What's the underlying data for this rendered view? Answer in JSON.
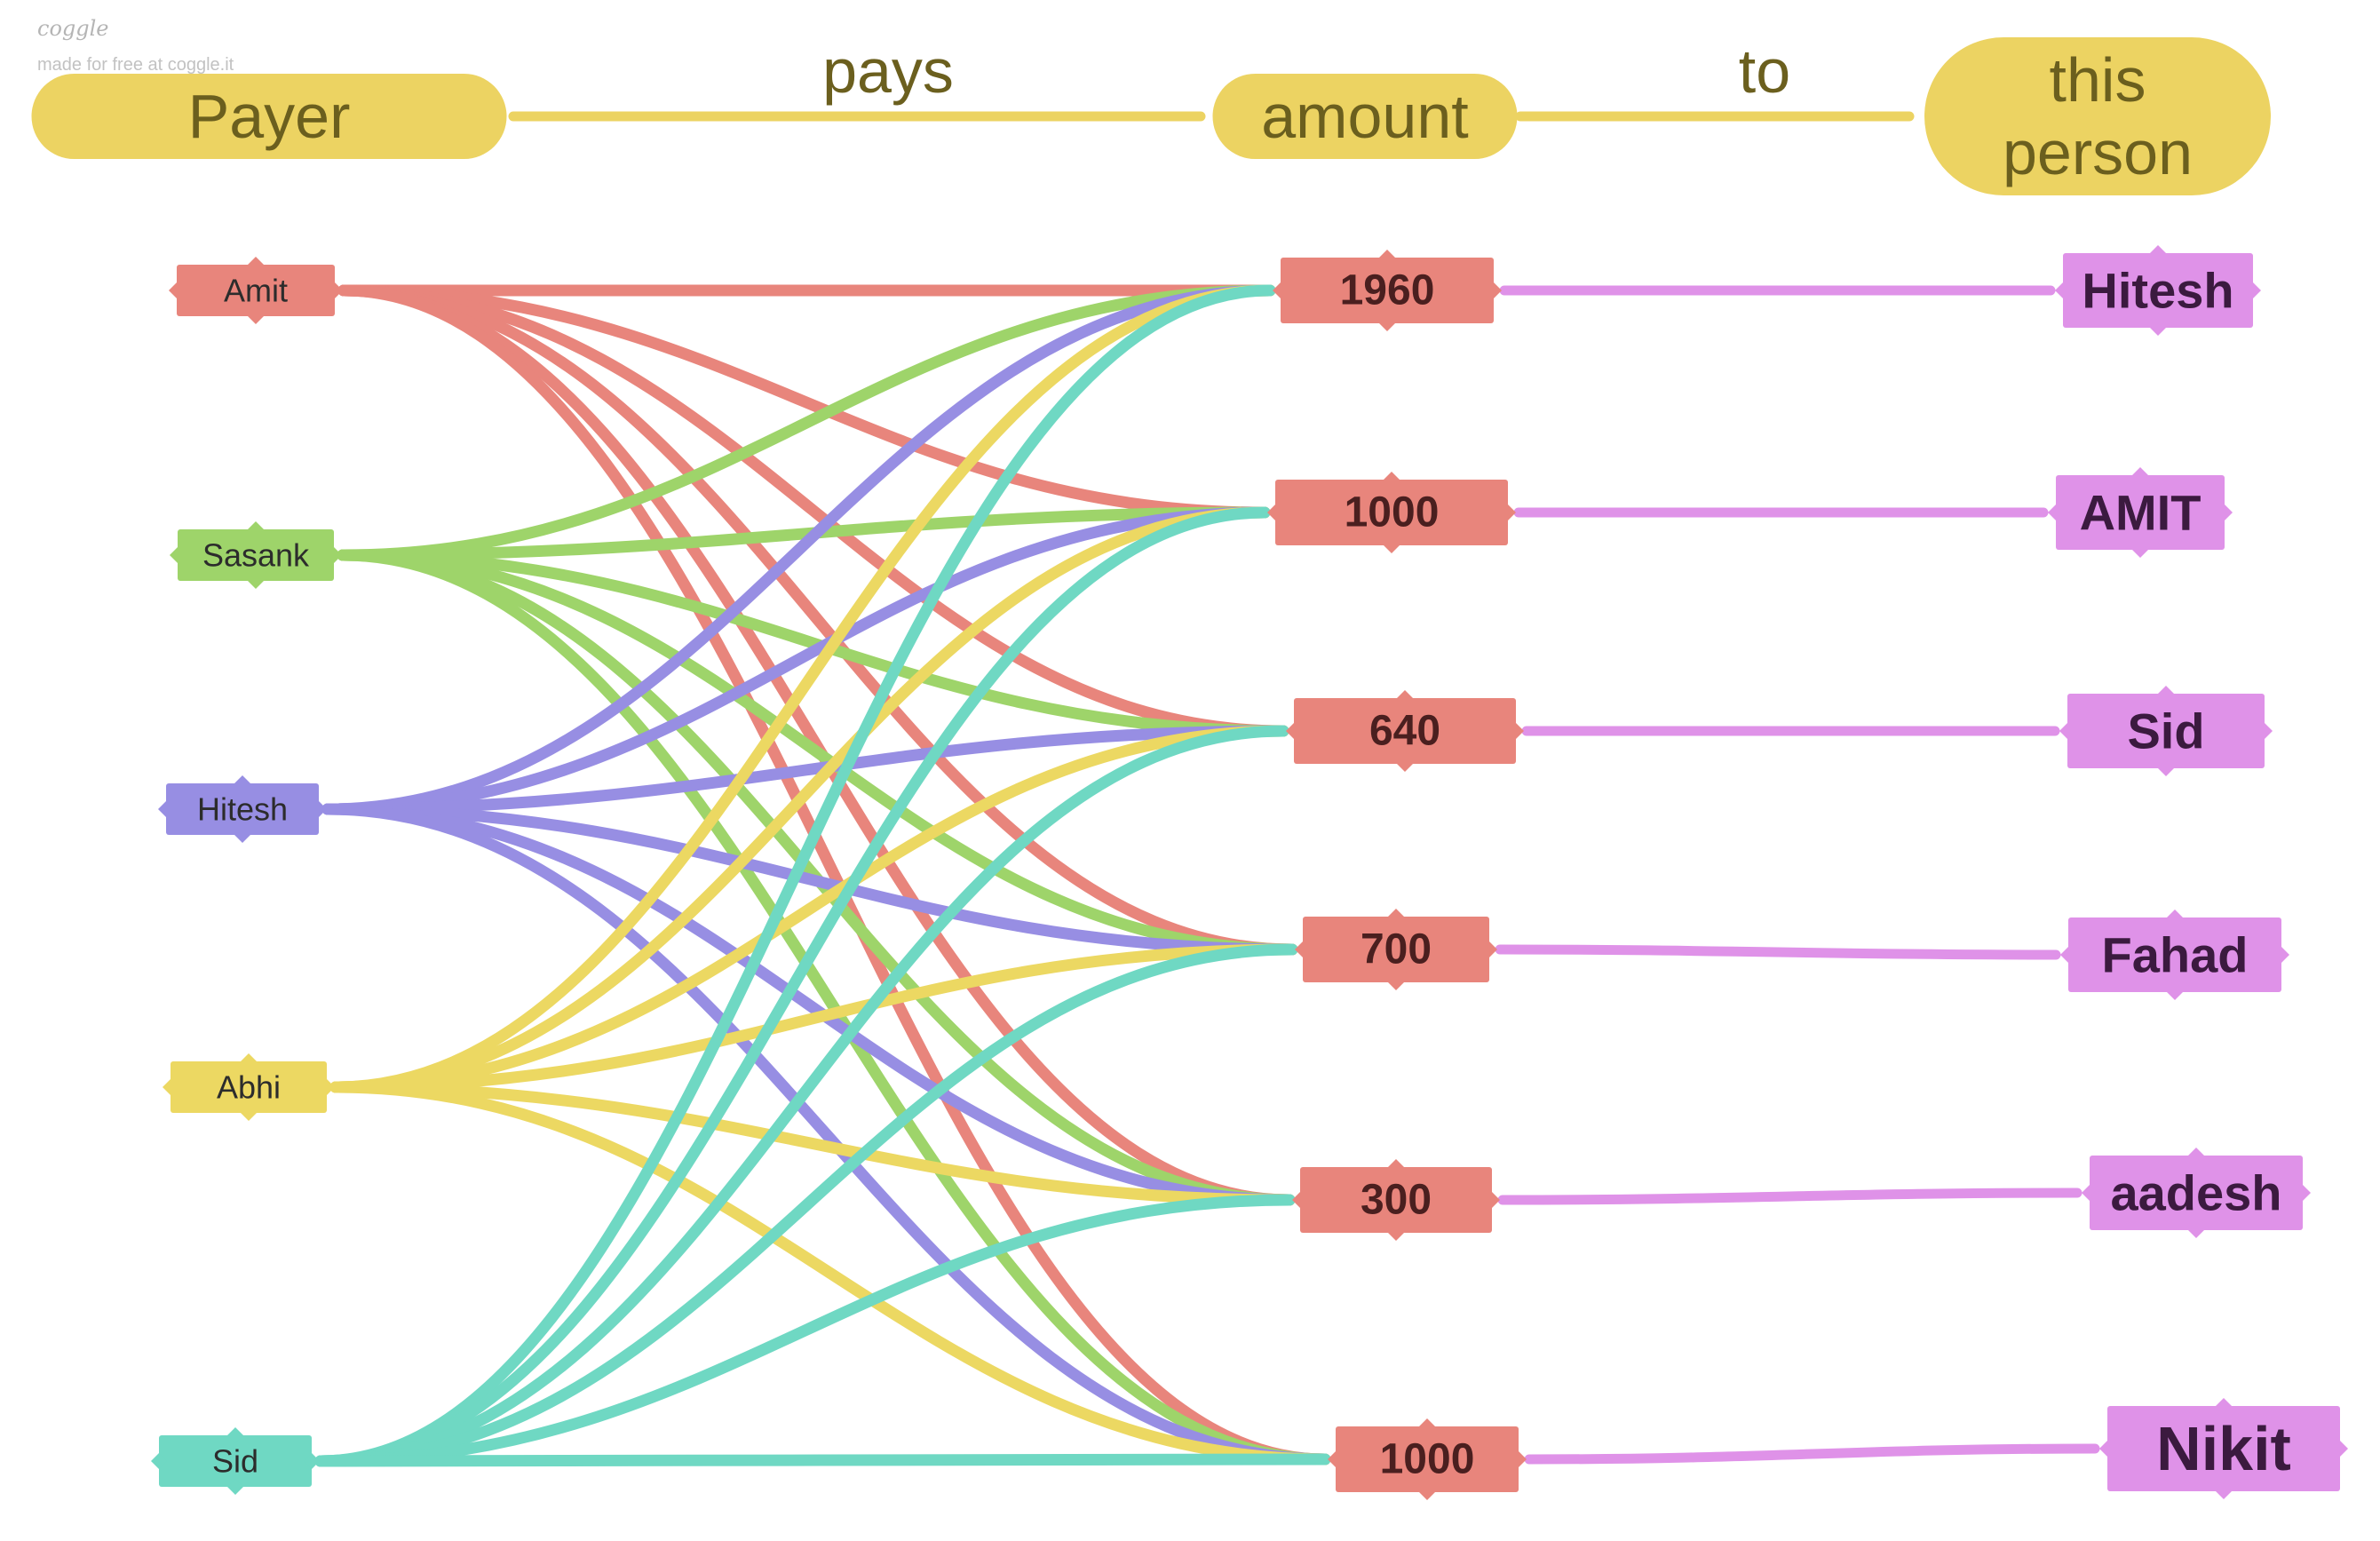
{
  "watermark": {
    "brand": "coggle",
    "note": "made for free at coggle.it"
  },
  "header": {
    "nodes": [
      {
        "id": "payer",
        "label": [
          "Payer"
        ]
      },
      {
        "id": "amount",
        "label": [
          "amount"
        ]
      },
      {
        "id": "person",
        "label": [
          "this",
          "person"
        ]
      }
    ],
    "edges": [
      {
        "from": "payer",
        "to": "amount",
        "label": "pays"
      },
      {
        "from": "amount",
        "to": "person",
        "label": "to"
      }
    ]
  },
  "payers": [
    {
      "id": "amit",
      "label": "Amit",
      "color": "#e8857c"
    },
    {
      "id": "sasank",
      "label": "Sasank",
      "color": "#9ed46a"
    },
    {
      "id": "hitesh",
      "label": "Hitesh",
      "color": "#978ee3"
    },
    {
      "id": "abhi",
      "label": "Abhi",
      "color": "#ecd862"
    },
    {
      "id": "sid",
      "label": "Sid",
      "color": "#6fd8c3"
    }
  ],
  "amounts": [
    {
      "id": "a1960",
      "label": "1960"
    },
    {
      "id": "a1000a",
      "label": "1000"
    },
    {
      "id": "a640",
      "label": "640"
    },
    {
      "id": "a700",
      "label": "700"
    },
    {
      "id": "a300",
      "label": "300"
    },
    {
      "id": "a1000b",
      "label": "1000"
    }
  ],
  "payees": [
    {
      "id": "p-hitesh",
      "label": "Hitesh"
    },
    {
      "id": "p-amit",
      "label": "AMIT"
    },
    {
      "id": "p-sid",
      "label": "Sid"
    },
    {
      "id": "p-fahad",
      "label": "Fahad"
    },
    {
      "id": "p-aadesh",
      "label": "aadesh"
    },
    {
      "id": "p-nikit",
      "label": "Nikit"
    }
  ],
  "payee_links": [
    [
      "a1960",
      "p-hitesh"
    ],
    [
      "a1000a",
      "p-amit"
    ],
    [
      "a640",
      "p-sid"
    ],
    [
      "a700",
      "p-fahad"
    ],
    [
      "a300",
      "p-aadesh"
    ],
    [
      "a1000b",
      "p-nikit"
    ]
  ],
  "payer_links": [
    [
      "amit",
      "a1960"
    ],
    [
      "amit",
      "a1000a"
    ],
    [
      "amit",
      "a640"
    ],
    [
      "amit",
      "a700"
    ],
    [
      "amit",
      "a300"
    ],
    [
      "amit",
      "a1000b"
    ],
    [
      "sasank",
      "a1960"
    ],
    [
      "sasank",
      "a1000a"
    ],
    [
      "sasank",
      "a640"
    ],
    [
      "sasank",
      "a700"
    ],
    [
      "sasank",
      "a300"
    ],
    [
      "sasank",
      "a1000b"
    ],
    [
      "hitesh",
      "a1960"
    ],
    [
      "hitesh",
      "a1000a"
    ],
    [
      "hitesh",
      "a640"
    ],
    [
      "hitesh",
      "a700"
    ],
    [
      "hitesh",
      "a300"
    ],
    [
      "hitesh",
      "a1000b"
    ],
    [
      "abhi",
      "a1960"
    ],
    [
      "abhi",
      "a1000a"
    ],
    [
      "abhi",
      "a640"
    ],
    [
      "abhi",
      "a700"
    ],
    [
      "abhi",
      "a300"
    ],
    [
      "abhi",
      "a1000b"
    ],
    [
      "sid",
      "a1960"
    ],
    [
      "sid",
      "a1000a"
    ],
    [
      "sid",
      "a640"
    ],
    [
      "sid",
      "a700"
    ],
    [
      "sid",
      "a300"
    ],
    [
      "sid",
      "a1000b"
    ]
  ],
  "colors": {
    "header_fill": "#ecd362",
    "header_text": "#6b5f1e",
    "amount_fill": "#e8857c",
    "amount_text": "#4a1f1f",
    "payee_fill": "#df92e8",
    "payee_text": "#3b1a3f",
    "payer_text": "#2c2c2c"
  }
}
